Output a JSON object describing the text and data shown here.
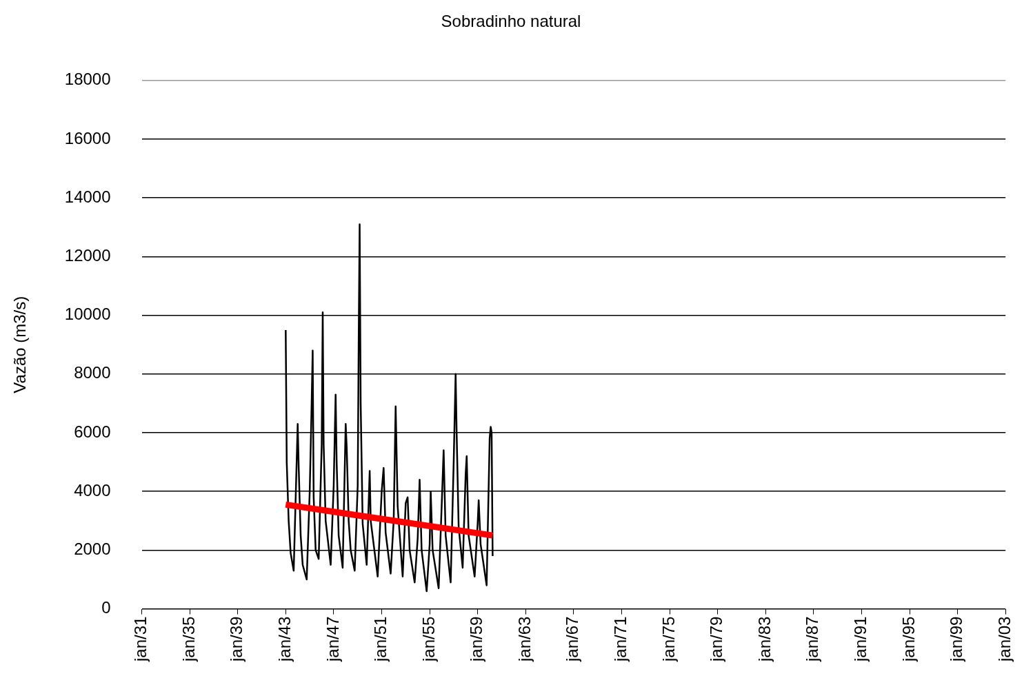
{
  "chart_data": {
    "type": "line",
    "title": "Sobradinho natural",
    "ylabel": "Vazão (m3/s)",
    "xlim": [
      "1931-01",
      "2003-01"
    ],
    "xticks": [
      {
        "value": "1931-01",
        "label": "jan/31"
      },
      {
        "value": "1935-01",
        "label": "jan/35"
      },
      {
        "value": "1939-01",
        "label": "jan/39"
      },
      {
        "value": "1943-01",
        "label": "jan/43"
      },
      {
        "value": "1947-01",
        "label": "jan/47"
      },
      {
        "value": "1951-01",
        "label": "jan/51"
      },
      {
        "value": "1955-01",
        "label": "jan/55"
      },
      {
        "value": "1959-01",
        "label": "jan/59"
      },
      {
        "value": "1963-01",
        "label": "jan/63"
      },
      {
        "value": "1967-01",
        "label": "jan/67"
      },
      {
        "value": "1971-01",
        "label": "jan/71"
      },
      {
        "value": "1975-01",
        "label": "jan/75"
      },
      {
        "value": "1979-01",
        "label": "jan/79"
      },
      {
        "value": "1983-01",
        "label": "jan/83"
      },
      {
        "value": "1987-01",
        "label": "jan/87"
      },
      {
        "value": "1991-01",
        "label": "jan/91"
      },
      {
        "value": "1995-01",
        "label": "jan/95"
      },
      {
        "value": "1999-01",
        "label": "jan/99"
      },
      {
        "value": "2003-01",
        "label": "jan/03"
      }
    ],
    "ylim": [
      0,
      18000
    ],
    "yticks": [
      0,
      2000,
      4000,
      6000,
      8000,
      10000,
      12000,
      14000,
      16000,
      18000
    ],
    "grid": "y",
    "legend": false,
    "marker": "none",
    "line_style": "solid",
    "series": [
      {
        "type": "line",
        "color": "#000000",
        "x": [
          "1943-01",
          "1943-02",
          "1943-04",
          "1943-06",
          "1943-09",
          "1944-01",
          "1944-02",
          "1944-04",
          "1944-06",
          "1944-10",
          "1945-01",
          "1945-03",
          "1945-04",
          "1945-05",
          "1945-07",
          "1945-10",
          "1946-01",
          "1946-02",
          "1946-03",
          "1946-05",
          "1946-10",
          "1947-01",
          "1947-03",
          "1947-04",
          "1947-06",
          "1947-10",
          "1948-01",
          "1948-02",
          "1948-04",
          "1948-06",
          "1948-10",
          "1949-01",
          "1949-02",
          "1949-03",
          "1949-04",
          "1949-06",
          "1949-10",
          "1950-01",
          "1950-02",
          "1950-05",
          "1950-09",
          "1951-01",
          "1951-03",
          "1951-05",
          "1951-10",
          "1952-01",
          "1952-03",
          "1952-05",
          "1952-10",
          "1953-01",
          "1953-03",
          "1953-05",
          "1953-10",
          "1954-01",
          "1954-03",
          "1954-05",
          "1954-10",
          "1955-01",
          "1955-02",
          "1955-04",
          "1955-10",
          "1956-01",
          "1956-03",
          "1956-05",
          "1956-10",
          "1957-01",
          "1957-03",
          "1957-04",
          "1957-06",
          "1957-10",
          "1958-01",
          "1958-02",
          "1958-04",
          "1958-10",
          "1959-01",
          "1959-02",
          "1959-04",
          "1959-10",
          "1960-01",
          "1960-02",
          "1960-03",
          "1960-04"
        ],
        "values": [
          9500,
          5000,
          3000,
          1900,
          1300,
          6300,
          4800,
          2500,
          1500,
          1000,
          4000,
          7000,
          8800,
          3800,
          2000,
          1700,
          5600,
          10100,
          5600,
          3000,
          1500,
          4200,
          7300,
          5000,
          2500,
          1400,
          6300,
          5500,
          3000,
          2000,
          1300,
          4200,
          9300,
          13100,
          7000,
          2900,
          1500,
          4700,
          3000,
          2200,
          1100,
          4000,
          4800,
          2600,
          1200,
          3000,
          6900,
          3500,
          1100,
          3600,
          3800,
          2000,
          900,
          2400,
          4400,
          2000,
          600,
          2200,
          4000,
          2000,
          700,
          3500,
          5400,
          2500,
          900,
          5000,
          8000,
          6000,
          2800,
          1400,
          4600,
          5200,
          2500,
          1100,
          2900,
          3700,
          2200,
          800,
          5800,
          6200,
          6000,
          1800
        ]
      },
      {
        "type": "line",
        "color": "#ff0000",
        "x": [
          "1943-01",
          "1960-04"
        ],
        "values": [
          3550,
          2500
        ]
      }
    ]
  }
}
